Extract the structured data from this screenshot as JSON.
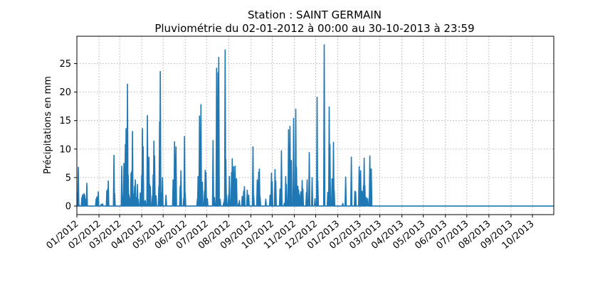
{
  "chart_data": {
    "type": "line",
    "title": "Station : SAINT GERMAIN",
    "subtitle": "Pluviométrie du 02-01-2012 à 00:00 au 30-10-2013 à 23:59",
    "xlabel": "",
    "ylabel": "Précipitations en mm",
    "xlim": [
      "2012-01-01",
      "2013-10-31"
    ],
    "ylim": [
      -1.5,
      29.8
    ],
    "y_ticks": [
      0,
      5,
      10,
      15,
      20,
      25
    ],
    "x_tick_labels": [
      "01/2012",
      "02/2012",
      "03/2012",
      "04/2012",
      "05/2012",
      "06/2012",
      "07/2012",
      "08/2012",
      "09/2012",
      "10/2012",
      "11/2012",
      "12/2012",
      "01/2013",
      "02/2013",
      "03/2013",
      "04/2013",
      "05/2013",
      "06/2013",
      "07/2013",
      "08/2013",
      "09/2013",
      "10/2013"
    ],
    "x_tick_dates": [
      "2012-01-01",
      "2012-02-01",
      "2012-03-01",
      "2012-04-01",
      "2012-05-01",
      "2012-06-01",
      "2012-07-01",
      "2012-08-01",
      "2012-09-01",
      "2012-10-01",
      "2012-11-01",
      "2012-12-01",
      "2013-01-01",
      "2013-02-01",
      "2013-03-01",
      "2013-04-01",
      "2013-05-01",
      "2013-06-01",
      "2013-07-01",
      "2013-08-01",
      "2013-09-01",
      "2013-10-01"
    ],
    "grid": true,
    "series": [
      {
        "color": "#1f77b4",
        "points": [
          [
            "2012-01-02",
            2.3
          ],
          [
            "2012-01-03",
            6.8
          ],
          [
            "2012-01-04",
            0.3
          ],
          [
            "2012-01-08",
            1.5
          ],
          [
            "2012-01-09",
            2.0
          ],
          [
            "2012-01-10",
            1.8
          ],
          [
            "2012-01-11",
            2.2
          ],
          [
            "2012-01-12",
            1.9
          ],
          [
            "2012-01-14",
            1.2
          ],
          [
            "2012-01-15",
            4.0
          ],
          [
            "2012-01-28",
            1.2
          ],
          [
            "2012-01-29",
            1.6
          ],
          [
            "2012-01-31",
            2.5
          ],
          [
            "2012-02-04",
            0.3
          ],
          [
            "2012-02-06",
            0.4
          ],
          [
            "2012-02-12",
            2.7
          ],
          [
            "2012-02-13",
            2.9
          ],
          [
            "2012-02-14",
            4.4
          ],
          [
            "2012-02-22",
            8.9
          ],
          [
            "2012-02-23",
            2.2
          ],
          [
            "2012-03-04",
            7.0
          ],
          [
            "2012-03-05",
            1.8
          ],
          [
            "2012-03-07",
            7.5
          ],
          [
            "2012-03-08",
            6.5
          ],
          [
            "2012-03-09",
            10.8
          ],
          [
            "2012-03-10",
            13.6
          ],
          [
            "2012-03-12",
            21.4
          ],
          [
            "2012-03-13",
            5.4
          ],
          [
            "2012-03-14",
            2.0
          ],
          [
            "2012-03-16",
            1.5
          ],
          [
            "2012-03-17",
            5.8
          ],
          [
            "2012-03-18",
            6.1
          ],
          [
            "2012-03-19",
            13.1
          ],
          [
            "2012-03-20",
            2.2
          ],
          [
            "2012-03-22",
            3.5
          ],
          [
            "2012-03-23",
            4.6
          ],
          [
            "2012-03-24",
            1.5
          ],
          [
            "2012-03-26",
            3.8
          ],
          [
            "2012-03-27",
            1.2
          ],
          [
            "2012-03-30",
            2.3
          ],
          [
            "2012-04-01",
            5.4
          ],
          [
            "2012-04-02",
            13.6
          ],
          [
            "2012-04-03",
            10.4
          ],
          [
            "2012-04-05",
            0.8
          ],
          [
            "2012-04-06",
            1.0
          ],
          [
            "2012-04-09",
            15.9
          ],
          [
            "2012-04-10",
            5.6
          ],
          [
            "2012-04-11",
            8.6
          ],
          [
            "2012-04-12",
            3.8
          ],
          [
            "2012-04-13",
            3.4
          ],
          [
            "2012-04-16",
            1.8
          ],
          [
            "2012-04-17",
            5.5
          ],
          [
            "2012-04-18",
            11.4
          ],
          [
            "2012-04-19",
            8.8
          ],
          [
            "2012-04-21",
            1.8
          ],
          [
            "2012-04-25",
            3.5
          ],
          [
            "2012-04-26",
            14.8
          ],
          [
            "2012-04-27",
            23.6
          ],
          [
            "2012-04-28",
            2.3
          ],
          [
            "2012-04-30",
            5.0
          ],
          [
            "2012-05-05",
            1.9
          ],
          [
            "2012-05-15",
            4.6
          ],
          [
            "2012-05-17",
            11.3
          ],
          [
            "2012-05-18",
            7.8
          ],
          [
            "2012-05-19",
            10.4
          ],
          [
            "2012-05-25",
            3.5
          ],
          [
            "2012-05-26",
            6.2
          ],
          [
            "2012-05-30",
            1.4
          ],
          [
            "2012-05-31",
            12.2
          ],
          [
            "2012-06-01",
            2.3
          ],
          [
            "2012-06-18",
            1.2
          ],
          [
            "2012-06-19",
            5.2
          ],
          [
            "2012-06-21",
            15.8
          ],
          [
            "2012-06-22",
            3.2
          ],
          [
            "2012-06-23",
            17.8
          ],
          [
            "2012-06-24",
            1.8
          ],
          [
            "2012-06-25",
            4.2
          ],
          [
            "2012-06-28",
            2.6
          ],
          [
            "2012-06-29",
            6.3
          ],
          [
            "2012-06-30",
            5.9
          ],
          [
            "2012-07-02",
            1.3
          ],
          [
            "2012-07-10",
            11.5
          ],
          [
            "2012-07-12",
            1.5
          ],
          [
            "2012-07-15",
            24.2
          ],
          [
            "2012-07-16",
            3.0
          ],
          [
            "2012-07-17",
            23.4
          ],
          [
            "2012-07-18",
            26.1
          ],
          [
            "2012-07-20",
            1.2
          ],
          [
            "2012-07-25",
            0.6
          ],
          [
            "2012-07-26",
            1.2
          ],
          [
            "2012-07-27",
            27.4
          ],
          [
            "2012-07-28",
            8.2
          ],
          [
            "2012-07-29",
            1.8
          ],
          [
            "2012-08-01",
            2.0
          ],
          [
            "2012-08-02",
            5.2
          ],
          [
            "2012-08-05",
            5.9
          ],
          [
            "2012-08-06",
            8.3
          ],
          [
            "2012-08-08",
            6.9
          ],
          [
            "2012-08-10",
            7.0
          ],
          [
            "2012-08-12",
            4.8
          ],
          [
            "2012-08-15",
            0.5
          ],
          [
            "2012-08-16",
            1.0
          ],
          [
            "2012-08-20",
            1.7
          ],
          [
            "2012-08-22",
            2.6
          ],
          [
            "2012-08-23",
            3.4
          ],
          [
            "2012-08-27",
            2.8
          ],
          [
            "2012-08-29",
            1.9
          ],
          [
            "2012-09-04",
            10.4
          ],
          [
            "2012-09-05",
            1.8
          ],
          [
            "2012-09-10",
            4.6
          ],
          [
            "2012-09-12",
            6.0
          ],
          [
            "2012-09-13",
            6.5
          ],
          [
            "2012-09-14",
            1.6
          ],
          [
            "2012-09-22",
            1.2
          ],
          [
            "2012-09-28",
            1.9
          ],
          [
            "2012-09-30",
            5.8
          ],
          [
            "2012-10-01",
            4.3
          ],
          [
            "2012-10-05",
            6.4
          ],
          [
            "2012-10-06",
            4.4
          ],
          [
            "2012-10-12",
            3.0
          ],
          [
            "2012-10-14",
            9.7
          ],
          [
            "2012-10-18",
            0.5
          ],
          [
            "2012-10-20",
            5.2
          ],
          [
            "2012-10-21",
            3.8
          ],
          [
            "2012-10-24",
            13.4
          ],
          [
            "2012-10-25",
            4.0
          ],
          [
            "2012-10-26",
            14.0
          ],
          [
            "2012-10-27",
            6.0
          ],
          [
            "2012-10-28",
            8.0
          ],
          [
            "2012-10-31",
            15.4
          ],
          [
            "2012-11-02",
            3.0
          ],
          [
            "2012-11-03",
            17.0
          ],
          [
            "2012-11-04",
            6.8
          ],
          [
            "2012-11-06",
            3.5
          ],
          [
            "2012-11-07",
            2.8
          ],
          [
            "2012-11-08",
            2.0
          ],
          [
            "2012-11-10",
            2.5
          ],
          [
            "2012-11-12",
            4.5
          ],
          [
            "2012-11-13",
            3.0
          ],
          [
            "2012-11-18",
            2.4
          ],
          [
            "2012-11-19",
            4.6
          ],
          [
            "2012-11-22",
            9.4
          ],
          [
            "2012-11-26",
            5.0
          ],
          [
            "2012-11-30",
            1.3
          ],
          [
            "2012-12-03",
            19.1
          ],
          [
            "2012-12-04",
            4.4
          ],
          [
            "2012-12-13",
            28.3
          ],
          [
            "2012-12-18",
            2.4
          ],
          [
            "2012-12-20",
            17.4
          ],
          [
            "2012-12-21",
            10.8
          ],
          [
            "2012-12-24",
            4.8
          ],
          [
            "2012-12-26",
            11.2
          ],
          [
            "2012-12-27",
            2.8
          ],
          [
            "2013-01-08",
            0.5
          ],
          [
            "2013-01-12",
            5.1
          ],
          [
            "2013-01-20",
            8.6
          ],
          [
            "2013-01-25",
            2.6
          ],
          [
            "2013-01-26",
            2.5
          ],
          [
            "2013-01-31",
            6.9
          ],
          [
            "2013-02-01",
            5.3
          ],
          [
            "2013-02-02",
            6.2
          ],
          [
            "2013-02-04",
            2.6
          ],
          [
            "2013-02-06",
            3.5
          ],
          [
            "2013-02-07",
            8.4
          ],
          [
            "2013-02-08",
            3.6
          ],
          [
            "2013-02-10",
            1.5
          ],
          [
            "2013-02-12",
            1.3
          ],
          [
            "2013-02-15",
            8.8
          ],
          [
            "2013-02-16",
            6.5
          ],
          [
            "2013-02-17",
            6.5
          ]
        ]
      }
    ]
  }
}
